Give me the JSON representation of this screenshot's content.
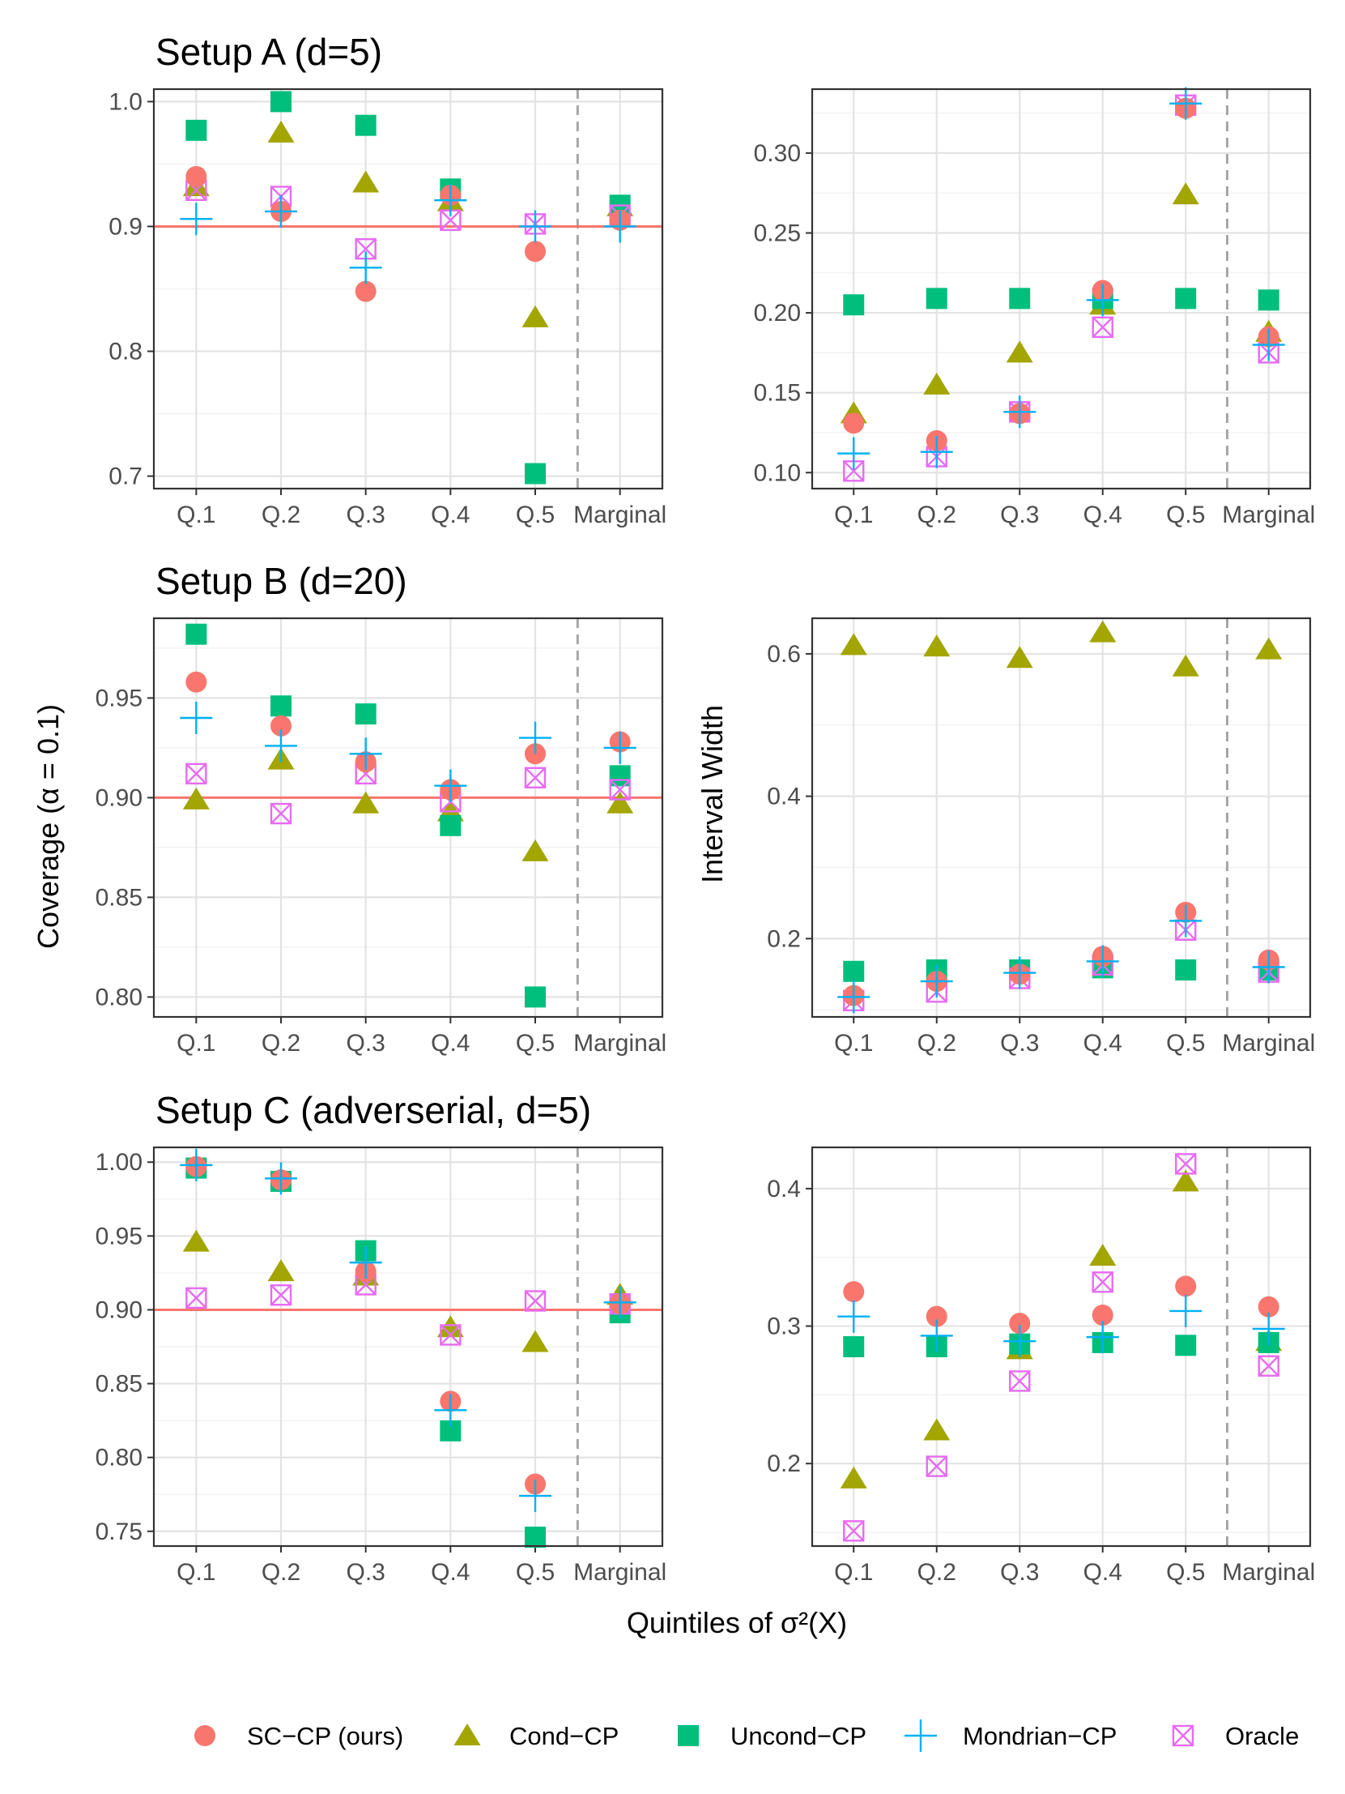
{
  "figure": {
    "x_axis_title": "Quintiles of σ²(X)",
    "left_y_axis_title": "Coverage (α = 0.1)",
    "right_y_axis_title": "Interval Width"
  },
  "legend": [
    {
      "name": "SC−CP (ours)",
      "shape": "circle",
      "color": "#F8766D"
    },
    {
      "name": "Cond−CP",
      "shape": "triangle",
      "color": "#A3A500"
    },
    {
      "name": "Uncond−CP",
      "shape": "square",
      "color": "#00BF7D"
    },
    {
      "name": "Mondrian−CP",
      "shape": "plus",
      "color": "#00B0F6"
    },
    {
      "name": "Oracle",
      "shape": "boxx",
      "color": "#E76BF3"
    }
  ],
  "chart_data": [
    {
      "type": "scatter",
      "title": "Setup A (d=5)",
      "metric": "Coverage",
      "categories": [
        "Q.1",
        "Q.2",
        "Q.3",
        "Q.4",
        "Q.5",
        "Marginal"
      ],
      "ylim": [
        0.69,
        1.01
      ],
      "yticks": [
        "1.0",
        "0.9",
        "0.8",
        "0.7"
      ],
      "reference_line": 0.9,
      "series": [
        {
          "name": "SC−CP (ours)",
          "values": [
            0.94,
            0.912,
            0.848,
            0.925,
            0.88,
            0.905
          ]
        },
        {
          "name": "Cond−CP",
          "values": [
            0.932,
            0.975,
            0.935,
            0.92,
            0.827,
            0.916
          ]
        },
        {
          "name": "Uncond−CP",
          "values": [
            0.977,
            1.0,
            0.981,
            0.93,
            0.702,
            0.917
          ]
        },
        {
          "name": "Mondrian−CP",
          "values": [
            0.906,
            0.912,
            0.867,
            0.921,
            0.9,
            0.9
          ]
        },
        {
          "name": "Oracle",
          "values": [
            0.929,
            0.924,
            0.882,
            0.905,
            0.902,
            0.909
          ]
        }
      ]
    },
    {
      "type": "scatter",
      "title": "",
      "metric": "Interval Width",
      "categories": [
        "Q.1",
        "Q.2",
        "Q.3",
        "Q.4",
        "Q.5",
        "Marginal"
      ],
      "ylim": [
        0.09,
        0.34
      ],
      "yticks": [
        "0.30",
        "0.25",
        "0.20",
        "0.15",
        "0.10"
      ],
      "reference_line": null,
      "series": [
        {
          "name": "SC−CP (ours)",
          "values": [
            0.131,
            0.12,
            0.137,
            0.214,
            0.328,
            0.185
          ]
        },
        {
          "name": "Cond−CP",
          "values": [
            0.137,
            0.155,
            0.175,
            0.205,
            0.274,
            0.188
          ]
        },
        {
          "name": "Uncond−CP",
          "values": [
            0.205,
            0.209,
            0.209,
            0.209,
            0.209,
            0.208
          ]
        },
        {
          "name": "Mondrian−CP",
          "values": [
            0.112,
            0.113,
            0.138,
            0.208,
            0.331,
            0.18
          ]
        },
        {
          "name": "Oracle",
          "values": [
            0.101,
            0.11,
            0.138,
            0.191,
            0.33,
            0.175
          ]
        }
      ]
    },
    {
      "type": "scatter",
      "title": "Setup B (d=20)",
      "metric": "Coverage",
      "categories": [
        "Q.1",
        "Q.2",
        "Q.3",
        "Q.4",
        "Q.5",
        "Marginal"
      ],
      "ylim": [
        0.79,
        0.99
      ],
      "yticks": [
        "0.95",
        "0.90",
        "0.85",
        "0.80"
      ],
      "reference_line": 0.9,
      "series": [
        {
          "name": "SC−CP (ours)",
          "values": [
            0.958,
            0.936,
            0.918,
            0.904,
            0.922,
            0.928
          ]
        },
        {
          "name": "Cond−CP",
          "values": [
            0.899,
            0.919,
            0.897,
            0.893,
            0.873,
            0.897
          ]
        },
        {
          "name": "Uncond−CP",
          "values": [
            0.982,
            0.946,
            0.942,
            0.886,
            0.8,
            0.911
          ]
        },
        {
          "name": "Mondrian−CP",
          "values": [
            0.94,
            0.926,
            0.922,
            0.906,
            0.93,
            0.925
          ]
        },
        {
          "name": "Oracle",
          "values": [
            0.912,
            0.892,
            0.912,
            0.898,
            0.91,
            0.904
          ]
        }
      ]
    },
    {
      "type": "scatter",
      "title": "",
      "metric": "Interval Width",
      "categories": [
        "Q.1",
        "Q.2",
        "Q.3",
        "Q.4",
        "Q.5",
        "Marginal"
      ],
      "ylim": [
        0.09,
        0.65
      ],
      "yticks": [
        "0.6",
        "0.4",
        "0.2"
      ],
      "reference_line": null,
      "series": [
        {
          "name": "SC−CP (ours)",
          "values": [
            0.12,
            0.14,
            0.15,
            0.175,
            0.237,
            0.17
          ]
        },
        {
          "name": "Cond−CP",
          "values": [
            0.612,
            0.61,
            0.594,
            0.63,
            0.582,
            0.606
          ]
        },
        {
          "name": "Uncond−CP",
          "values": [
            0.154,
            0.156,
            0.156,
            0.159,
            0.156,
            0.156
          ]
        },
        {
          "name": "Mondrian−CP",
          "values": [
            0.118,
            0.14,
            0.152,
            0.168,
            0.225,
            0.16
          ]
        },
        {
          "name": "Oracle",
          "values": [
            0.113,
            0.125,
            0.144,
            0.163,
            0.212,
            0.153
          ]
        }
      ]
    },
    {
      "type": "scatter",
      "title": "Setup C (adverserial, d=5)",
      "metric": "Coverage",
      "categories": [
        "Q.1",
        "Q.2",
        "Q.3",
        "Q.4",
        "Q.5",
        "Marginal"
      ],
      "ylim": [
        0.74,
        1.01
      ],
      "yticks": [
        "1.00",
        "0.95",
        "0.90",
        "0.85",
        "0.80",
        "0.75"
      ],
      "reference_line": 0.9,
      "series": [
        {
          "name": "SC−CP (ours)",
          "values": [
            0.997,
            0.988,
            0.926,
            0.838,
            0.782,
            0.904
          ]
        },
        {
          "name": "Cond−CP",
          "values": [
            0.946,
            0.926,
            0.923,
            0.888,
            0.878,
            0.91
          ]
        },
        {
          "name": "Uncond−CP",
          "values": [
            0.996,
            0.987,
            0.94,
            0.818,
            0.746,
            0.898
          ]
        },
        {
          "name": "Mondrian−CP",
          "values": [
            0.998,
            0.989,
            0.932,
            0.832,
            0.774,
            0.905
          ]
        },
        {
          "name": "Oracle",
          "values": [
            0.908,
            0.91,
            0.917,
            0.883,
            0.906,
            0.904
          ]
        }
      ]
    },
    {
      "type": "scatter",
      "title": "",
      "metric": "Interval Width",
      "categories": [
        "Q.1",
        "Q.2",
        "Q.3",
        "Q.4",
        "Q.5",
        "Marginal"
      ],
      "ylim": [
        0.14,
        0.43
      ],
      "yticks": [
        "0.4",
        "0.3",
        "0.2"
      ],
      "reference_line": null,
      "series": [
        {
          "name": "SC−CP (ours)",
          "values": [
            0.325,
            0.307,
            0.302,
            0.308,
            0.329,
            0.314
          ]
        },
        {
          "name": "Cond−CP",
          "values": [
            0.189,
            0.224,
            0.283,
            0.351,
            0.405,
            0.289
          ]
        },
        {
          "name": "Uncond−CP",
          "values": [
            0.285,
            0.285,
            0.287,
            0.288,
            0.286,
            0.288
          ]
        },
        {
          "name": "Mondrian−CP",
          "values": [
            0.307,
            0.293,
            0.289,
            0.292,
            0.311,
            0.298
          ]
        },
        {
          "name": "Oracle",
          "values": [
            0.151,
            0.198,
            0.26,
            0.332,
            0.418,
            0.271
          ]
        }
      ]
    }
  ]
}
